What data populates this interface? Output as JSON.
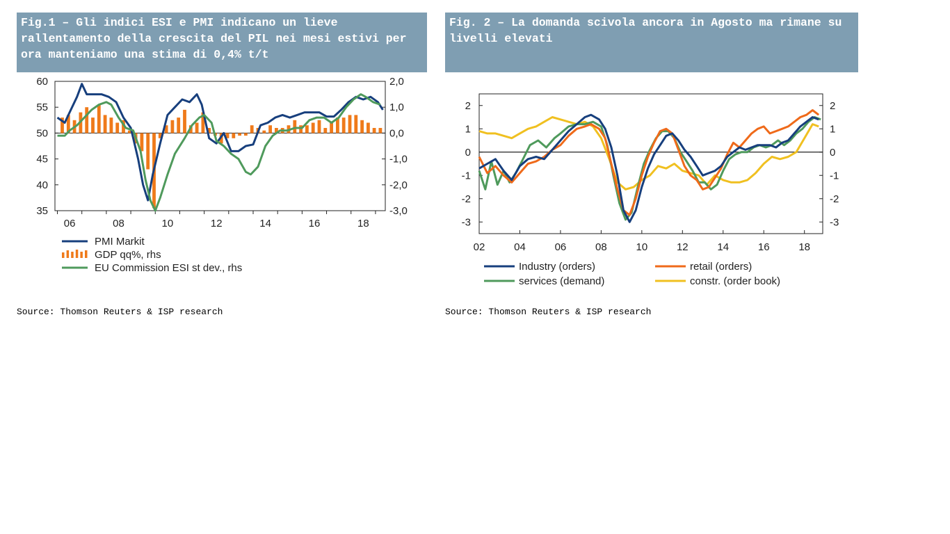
{
  "figure1": {
    "title": "Fig.1 – Gli indici ESI e PMI indicano un lieve rallentamento della crescita del PIL nei mesi estivi per ora manteniamo una stima di 0,4% t/t",
    "source": "Source: Thomson Reuters & ISP research"
  },
  "figure2": {
    "title": "Fig. 2 – La domanda scivola ancora in Agosto ma rimane su livelli elevati",
    "source": "Source: Thomson Reuters & ISP research"
  },
  "chart_data": [
    {
      "type": "line",
      "x_range": [
        2005.4,
        2018.9
      ],
      "xticks": [
        {
          "v": 2006,
          "label": "06"
        },
        {
          "v": 2008,
          "label": "08"
        },
        {
          "v": 2010,
          "label": "10"
        },
        {
          "v": 2012,
          "label": "12"
        },
        {
          "v": 2014,
          "label": "14"
        },
        {
          "v": 2016,
          "label": "16"
        },
        {
          "v": 2018,
          "label": "18"
        }
      ],
      "ylim_left": [
        35,
        60
      ],
      "yticks_left": [
        60,
        55,
        50,
        45,
        40,
        35
      ],
      "ylim_right": [
        -3.0,
        2.0
      ],
      "yticks_right": [
        {
          "v": 2.0,
          "label": "2,0"
        },
        {
          "v": 1.0,
          "label": "1,0"
        },
        {
          "v": 0.0,
          "label": "0,0"
        },
        {
          "v": -1.0,
          "label": "-1,0"
        },
        {
          "v": -2.0,
          "label": "-2,0"
        },
        {
          "v": -3.0,
          "label": "-3,0"
        }
      ],
      "series": [
        {
          "name": "PMI Markit",
          "axis": "left",
          "kind": "line",
          "color": "#173f7d",
          "x": [
            2005.5,
            2005.8,
            2006.0,
            2006.3,
            2006.5,
            2006.7,
            2007.0,
            2007.3,
            2007.6,
            2007.9,
            2008.2,
            2008.5,
            2008.8,
            2009.0,
            2009.2,
            2009.4,
            2009.7,
            2010.0,
            2010.3,
            2010.6,
            2010.9,
            2011.2,
            2011.4,
            2011.7,
            2012.0,
            2012.3,
            2012.6,
            2012.9,
            2013.2,
            2013.5,
            2013.8,
            2014.1,
            2014.4,
            2014.7,
            2015.0,
            2015.3,
            2015.6,
            2015.9,
            2016.2,
            2016.5,
            2016.8,
            2017.1,
            2017.4,
            2017.7,
            2018.0,
            2018.3,
            2018.6,
            2018.8
          ],
          "values": [
            53,
            52,
            54,
            57,
            59.5,
            57.5,
            57.5,
            57.5,
            57,
            56,
            53,
            51,
            45,
            40,
            37,
            42,
            48,
            53.5,
            55,
            56.5,
            56,
            57.5,
            55.5,
            49,
            48,
            50,
            46.5,
            46.5,
            47.5,
            47.8,
            51.5,
            52,
            53,
            53.5,
            53,
            53.5,
            54,
            54,
            54,
            53.2,
            53.2,
            54.5,
            56,
            57,
            56.5,
            57,
            56,
            54.5
          ]
        },
        {
          "name": "GDP qq%, rhs",
          "axis": "right",
          "kind": "bar",
          "color": "#ef7a1a",
          "x": [
            2005.7,
            2005.95,
            2006.2,
            2006.45,
            2006.7,
            2006.95,
            2007.2,
            2007.45,
            2007.7,
            2007.95,
            2008.2,
            2008.45,
            2008.7,
            2008.95,
            2009.2,
            2009.45,
            2009.7,
            2009.95,
            2010.2,
            2010.45,
            2010.7,
            2010.95,
            2011.2,
            2011.45,
            2011.7,
            2011.95,
            2012.2,
            2012.45,
            2012.7,
            2012.95,
            2013.2,
            2013.45,
            2013.7,
            2013.95,
            2014.2,
            2014.45,
            2014.7,
            2014.95,
            2015.2,
            2015.45,
            2015.7,
            2015.95,
            2016.2,
            2016.45,
            2016.7,
            2016.95,
            2017.2,
            2017.45,
            2017.7,
            2017.95,
            2018.2,
            2018.45,
            2018.7
          ],
          "values": [
            0.6,
            0.7,
            0.5,
            0.8,
            1.0,
            0.6,
            1.1,
            0.7,
            0.6,
            0.4,
            0.5,
            0.1,
            -0.4,
            -0.7,
            -1.4,
            -2.9,
            -0.2,
            0.3,
            0.5,
            0.6,
            0.9,
            0.3,
            0.4,
            0.8,
            0.2,
            -0.1,
            -0.4,
            -0.2,
            -0.2,
            -0.1,
            -0.1,
            0.3,
            0.2,
            0.1,
            0.3,
            0.2,
            0.2,
            0.3,
            0.5,
            0.3,
            0.3,
            0.4,
            0.5,
            0.2,
            0.4,
            0.6,
            0.6,
            0.7,
            0.7,
            0.5,
            0.4,
            0.2,
            0.2
          ]
        },
        {
          "name": "EU Commission ESI st dev., rhs",
          "axis": "right",
          "kind": "line",
          "color": "#4f9a5c",
          "x": [
            2005.5,
            2005.8,
            2006.0,
            2006.3,
            2006.6,
            2006.9,
            2007.2,
            2007.5,
            2007.7,
            2008.0,
            2008.3,
            2008.6,
            2008.9,
            2009.1,
            2009.3,
            2009.5,
            2009.7,
            2010.0,
            2010.3,
            2010.7,
            2011.0,
            2011.3,
            2011.5,
            2011.8,
            2012.0,
            2012.3,
            2012.6,
            2012.9,
            2013.2,
            2013.4,
            2013.7,
            2014.0,
            2014.3,
            2014.6,
            2014.9,
            2015.2,
            2015.5,
            2015.8,
            2016.1,
            2016.4,
            2016.7,
            2017.0,
            2017.3,
            2017.6,
            2017.9,
            2018.1,
            2018.4,
            2018.7
          ],
          "values": [
            -0.1,
            -0.1,
            0.1,
            0.3,
            0.6,
            0.9,
            1.1,
            1.2,
            1.1,
            0.6,
            0.2,
            0.1,
            -0.7,
            -1.8,
            -2.6,
            -3.0,
            -2.5,
            -1.6,
            -0.8,
            -0.2,
            0.3,
            0.6,
            0.7,
            0.4,
            -0.3,
            -0.5,
            -0.8,
            -1.0,
            -1.5,
            -1.6,
            -1.3,
            -0.5,
            -0.1,
            0.1,
            0.1,
            0.2,
            0.2,
            0.5,
            0.6,
            0.6,
            0.4,
            0.6,
            1.0,
            1.3,
            1.5,
            1.4,
            1.2,
            1.1
          ]
        }
      ],
      "legend": [
        {
          "label": "PMI Markit",
          "kind": "line",
          "color": "#173f7d"
        },
        {
          "label": "GDP qq%, rhs",
          "kind": "bar",
          "color": "#ef7a1a"
        },
        {
          "label": "EU Commission ESI st dev., rhs",
          "kind": "line",
          "color": "#4f9a5c"
        }
      ]
    },
    {
      "type": "line",
      "x_range": [
        2002,
        2018.9
      ],
      "xticks": [
        {
          "v": 2002,
          "label": "02"
        },
        {
          "v": 2004,
          "label": "04"
        },
        {
          "v": 2006,
          "label": "06"
        },
        {
          "v": 2008,
          "label": "08"
        },
        {
          "v": 2010,
          "label": "10"
        },
        {
          "v": 2012,
          "label": "12"
        },
        {
          "v": 2014,
          "label": "14"
        },
        {
          "v": 2016,
          "label": "16"
        },
        {
          "v": 2018,
          "label": "18"
        }
      ],
      "ylim": [
        -3.5,
        2.5
      ],
      "yticks": [
        2,
        1,
        0,
        -1,
        -2,
        -3
      ],
      "series": [
        {
          "name": "Industry (orders)",
          "color": "#173f7d",
          "x": [
            2002.0,
            2002.4,
            2002.8,
            2003.2,
            2003.6,
            2004.0,
            2004.4,
            2004.8,
            2005.2,
            2005.6,
            2006.0,
            2006.4,
            2006.8,
            2007.2,
            2007.5,
            2007.9,
            2008.2,
            2008.5,
            2008.8,
            2009.1,
            2009.4,
            2009.7,
            2010.0,
            2010.3,
            2010.6,
            2010.9,
            2011.2,
            2011.5,
            2011.8,
            2012.1,
            2012.4,
            2012.7,
            2013.0,
            2013.3,
            2013.6,
            2013.9,
            2014.2,
            2014.5,
            2014.8,
            2015.1,
            2015.4,
            2015.7,
            2016.0,
            2016.3,
            2016.6,
            2016.9,
            2017.2,
            2017.5,
            2017.8,
            2018.1,
            2018.4,
            2018.7
          ],
          "values": [
            -0.7,
            -0.5,
            -0.3,
            -0.8,
            -1.2,
            -0.6,
            -0.3,
            -0.2,
            -0.3,
            0.1,
            0.5,
            0.9,
            1.2,
            1.5,
            1.6,
            1.4,
            1.0,
            0.2,
            -1.0,
            -2.5,
            -3.0,
            -2.5,
            -1.5,
            -0.7,
            -0.1,
            0.3,
            0.7,
            0.8,
            0.5,
            0.1,
            -0.2,
            -0.6,
            -1.0,
            -0.9,
            -0.8,
            -0.6,
            -0.2,
            0.0,
            0.2,
            0.1,
            0.2,
            0.3,
            0.3,
            0.3,
            0.2,
            0.4,
            0.5,
            0.8,
            1.1,
            1.3,
            1.5,
            1.4
          ]
        },
        {
          "name": "retail (orders)",
          "color": "#ef6a1a",
          "x": [
            2002.0,
            2002.4,
            2002.8,
            2003.2,
            2003.6,
            2004.0,
            2004.4,
            2004.8,
            2005.2,
            2005.6,
            2006.0,
            2006.4,
            2006.8,
            2007.2,
            2007.5,
            2007.9,
            2008.2,
            2008.5,
            2008.8,
            2009.1,
            2009.4,
            2009.7,
            2010.0,
            2010.3,
            2010.6,
            2010.9,
            2011.2,
            2011.5,
            2011.8,
            2012.1,
            2012.4,
            2012.7,
            2013.0,
            2013.3,
            2013.6,
            2013.9,
            2014.2,
            2014.5,
            2014.8,
            2015.1,
            2015.4,
            2015.7,
            2016.0,
            2016.3,
            2016.6,
            2016.9,
            2017.2,
            2017.5,
            2017.8,
            2018.1,
            2018.4,
            2018.7
          ],
          "values": [
            -0.2,
            -0.9,
            -0.6,
            -1.0,
            -1.3,
            -0.9,
            -0.5,
            -0.4,
            -0.2,
            0.1,
            0.3,
            0.7,
            1.0,
            1.1,
            1.2,
            1.0,
            0.6,
            -0.5,
            -1.6,
            -2.5,
            -2.7,
            -2.0,
            -1.0,
            -0.2,
            0.4,
            0.9,
            1.0,
            0.8,
            0.1,
            -0.6,
            -1.0,
            -1.2,
            -1.6,
            -1.5,
            -1.1,
            -0.7,
            -0.1,
            0.4,
            0.2,
            0.5,
            0.8,
            1.0,
            1.1,
            0.8,
            0.9,
            1.0,
            1.1,
            1.3,
            1.5,
            1.6,
            1.8,
            1.6
          ]
        },
        {
          "name": "services (demand)",
          "color": "#4f9a5c",
          "x": [
            2002.0,
            2002.3,
            2002.6,
            2002.9,
            2003.2,
            2003.5,
            2003.8,
            2004.1,
            2004.5,
            2004.9,
            2005.3,
            2005.7,
            2006.0,
            2006.4,
            2006.8,
            2007.2,
            2007.6,
            2008.0,
            2008.3,
            2008.6,
            2008.9,
            2009.2,
            2009.5,
            2009.8,
            2010.1,
            2010.4,
            2010.7,
            2011.0,
            2011.3,
            2011.6,
            2011.9,
            2012.2,
            2012.5,
            2012.8,
            2013.1,
            2013.4,
            2013.7,
            2014.0,
            2014.3,
            2014.6,
            2014.9,
            2015.2,
            2015.5,
            2015.8,
            2016.1,
            2016.4,
            2016.7,
            2017.0,
            2017.3,
            2017.6,
            2017.9,
            2018.2,
            2018.5,
            2018.8
          ],
          "values": [
            -0.8,
            -1.6,
            -0.4,
            -1.4,
            -0.8,
            -1.3,
            -0.9,
            -0.4,
            0.3,
            0.5,
            0.2,
            0.6,
            0.8,
            1.1,
            1.2,
            1.2,
            1.3,
            1.1,
            0.3,
            -1.0,
            -2.2,
            -2.9,
            -2.6,
            -1.5,
            -0.5,
            0.1,
            0.6,
            0.9,
            0.9,
            0.6,
            0.0,
            -0.4,
            -0.8,
            -1.3,
            -1.3,
            -1.6,
            -1.4,
            -0.8,
            -0.3,
            -0.1,
            0.0,
            0.0,
            0.2,
            0.3,
            0.2,
            0.3,
            0.5,
            0.3,
            0.5,
            0.8,
            1.0,
            1.3,
            1.5,
            1.4
          ]
        },
        {
          "name": "constr. (order book)",
          "color": "#f0c020",
          "x": [
            2002.0,
            2002.4,
            2002.8,
            2003.2,
            2003.6,
            2004.0,
            2004.4,
            2004.8,
            2005.2,
            2005.6,
            2006.0,
            2006.4,
            2006.8,
            2007.2,
            2007.6,
            2008.0,
            2008.4,
            2008.8,
            2009.2,
            2009.6,
            2010.0,
            2010.4,
            2010.8,
            2011.2,
            2011.6,
            2012.0,
            2012.4,
            2012.8,
            2013.2,
            2013.6,
            2014.0,
            2014.4,
            2014.8,
            2015.2,
            2015.6,
            2016.0,
            2016.4,
            2016.8,
            2017.2,
            2017.6,
            2018.0,
            2018.4,
            2018.7
          ],
          "values": [
            0.9,
            0.8,
            0.8,
            0.7,
            0.6,
            0.8,
            1.0,
            1.1,
            1.3,
            1.5,
            1.4,
            1.3,
            1.2,
            1.3,
            1.1,
            0.6,
            -0.3,
            -1.3,
            -1.6,
            -1.5,
            -1.2,
            -1.0,
            -0.6,
            -0.7,
            -0.5,
            -0.8,
            -0.9,
            -1.0,
            -1.4,
            -1.0,
            -1.2,
            -1.3,
            -1.3,
            -1.2,
            -0.9,
            -0.5,
            -0.2,
            -0.3,
            -0.2,
            0.0,
            0.6,
            1.2,
            1.1
          ]
        }
      ],
      "legend": [
        {
          "label": "Industry (orders)",
          "color": "#173f7d"
        },
        {
          "label": "retail (orders)",
          "color": "#ef6a1a"
        },
        {
          "label": "services (demand)",
          "color": "#4f9a5c"
        },
        {
          "label": "constr. (order book)",
          "color": "#f0c020"
        }
      ]
    }
  ]
}
